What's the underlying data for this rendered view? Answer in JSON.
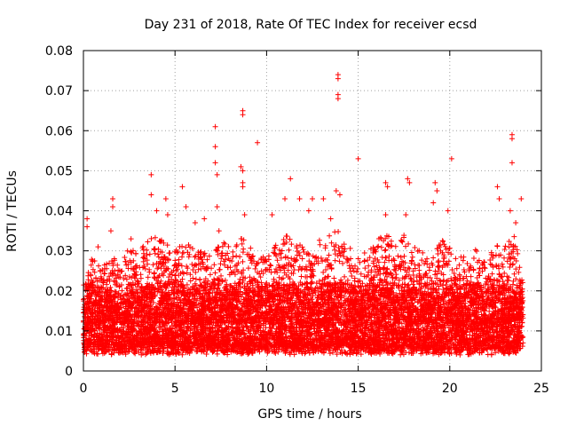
{
  "chart_data": {
    "type": "scatter",
    "title": "Day 231 of 2018, Rate Of TEC Index for receiver ecsd",
    "xlabel": "GPS time / hours",
    "ylabel": "ROTI / TECUs",
    "xlim": [
      0,
      25
    ],
    "ylim": [
      0,
      0.08
    ],
    "x_ticks": [
      0,
      5,
      10,
      15,
      20,
      25
    ],
    "x_tick_labels": [
      "0",
      "5",
      "10",
      "15",
      "20",
      "25"
    ],
    "y_ticks": [
      0,
      0.01,
      0.02,
      0.03,
      0.04,
      0.05,
      0.06,
      0.07,
      0.08
    ],
    "y_tick_labels": [
      "0",
      "0.01",
      "0.02",
      "0.03",
      "0.04",
      "0.05",
      "0.06",
      "0.07",
      "0.08"
    ],
    "grid": true,
    "marker": "+",
    "series": [
      {
        "name": "ROTI",
        "color": "#ff0000",
        "x_range": [
          0,
          24
        ],
        "points": [
          [
            0.2,
            0.038
          ],
          [
            0.2,
            0.036
          ],
          [
            0.8,
            0.031
          ],
          [
            1.5,
            0.035
          ],
          [
            1.6,
            0.043
          ],
          [
            1.6,
            0.041
          ],
          [
            2.6,
            0.033
          ],
          [
            3.7,
            0.049
          ],
          [
            3.7,
            0.044
          ],
          [
            4.0,
            0.04
          ],
          [
            4.5,
            0.043
          ],
          [
            4.6,
            0.039
          ],
          [
            5.4,
            0.046
          ],
          [
            5.6,
            0.041
          ],
          [
            6.1,
            0.037
          ],
          [
            6.6,
            0.038
          ],
          [
            7.2,
            0.061
          ],
          [
            7.2,
            0.056
          ],
          [
            7.2,
            0.052
          ],
          [
            7.3,
            0.049
          ],
          [
            7.3,
            0.041
          ],
          [
            7.4,
            0.035
          ],
          [
            8.7,
            0.065
          ],
          [
            8.7,
            0.064
          ],
          [
            8.6,
            0.051
          ],
          [
            8.7,
            0.05
          ],
          [
            8.7,
            0.047
          ],
          [
            8.7,
            0.046
          ],
          [
            8.8,
            0.039
          ],
          [
            9.5,
            0.057
          ],
          [
            10.3,
            0.039
          ],
          [
            11.0,
            0.043
          ],
          [
            11.3,
            0.048
          ],
          [
            11.8,
            0.043
          ],
          [
            12.3,
            0.04
          ],
          [
            12.5,
            0.043
          ],
          [
            13.1,
            0.043
          ],
          [
            13.5,
            0.038
          ],
          [
            13.8,
            0.045
          ],
          [
            13.9,
            0.074
          ],
          [
            13.9,
            0.073
          ],
          [
            13.9,
            0.069
          ],
          [
            13.9,
            0.068
          ],
          [
            14.0,
            0.044
          ],
          [
            15.0,
            0.053
          ],
          [
            16.5,
            0.047
          ],
          [
            16.6,
            0.046
          ],
          [
            16.5,
            0.039
          ],
          [
            17.7,
            0.048
          ],
          [
            17.8,
            0.047
          ],
          [
            17.6,
            0.039
          ],
          [
            19.1,
            0.042
          ],
          [
            19.2,
            0.047
          ],
          [
            19.3,
            0.045
          ],
          [
            19.9,
            0.04
          ],
          [
            20.1,
            0.053
          ],
          [
            22.6,
            0.046
          ],
          [
            22.7,
            0.043
          ],
          [
            23.3,
            0.04
          ],
          [
            23.4,
            0.059
          ],
          [
            23.4,
            0.058
          ],
          [
            23.4,
            0.052
          ],
          [
            23.6,
            0.037
          ],
          [
            23.9,
            0.043
          ]
        ],
        "dense_band": {
          "baseline_range": [
            0.004,
            0.02
          ],
          "upper_envelope": [
            [
              0.0,
              0.022
            ],
            [
              0.5,
              0.029
            ],
            [
              1.0,
              0.025
            ],
            [
              1.5,
              0.03
            ],
            [
              2.0,
              0.027
            ],
            [
              2.5,
              0.031
            ],
            [
              3.0,
              0.029
            ],
            [
              3.5,
              0.033
            ],
            [
              4.0,
              0.034
            ],
            [
              4.5,
              0.032
            ],
            [
              5.0,
              0.03
            ],
            [
              5.5,
              0.032
            ],
            [
              6.0,
              0.031
            ],
            [
              6.5,
              0.03
            ],
            [
              7.0,
              0.029
            ],
            [
              7.5,
              0.033
            ],
            [
              8.0,
              0.031
            ],
            [
              8.5,
              0.034
            ],
            [
              9.0,
              0.032
            ],
            [
              9.5,
              0.027
            ],
            [
              10.0,
              0.03
            ],
            [
              10.5,
              0.033
            ],
            [
              11.0,
              0.034
            ],
            [
              11.5,
              0.033
            ],
            [
              12.0,
              0.031
            ],
            [
              12.5,
              0.032
            ],
            [
              13.0,
              0.034
            ],
            [
              13.5,
              0.035
            ],
            [
              14.0,
              0.035
            ],
            [
              14.5,
              0.031
            ],
            [
              15.0,
              0.029
            ],
            [
              15.5,
              0.03
            ],
            [
              16.0,
              0.032
            ],
            [
              16.5,
              0.036
            ],
            [
              17.0,
              0.031
            ],
            [
              17.5,
              0.034
            ],
            [
              18.0,
              0.031
            ],
            [
              18.5,
              0.03
            ],
            [
              19.0,
              0.027
            ],
            [
              19.5,
              0.034
            ],
            [
              20.0,
              0.031
            ],
            [
              20.5,
              0.03
            ],
            [
              21.0,
              0.028
            ],
            [
              21.5,
              0.031
            ],
            [
              22.0,
              0.03
            ],
            [
              22.5,
              0.032
            ],
            [
              23.0,
              0.031
            ],
            [
              23.5,
              0.035
            ],
            [
              24.0,
              0.024
            ]
          ]
        }
      }
    ]
  }
}
